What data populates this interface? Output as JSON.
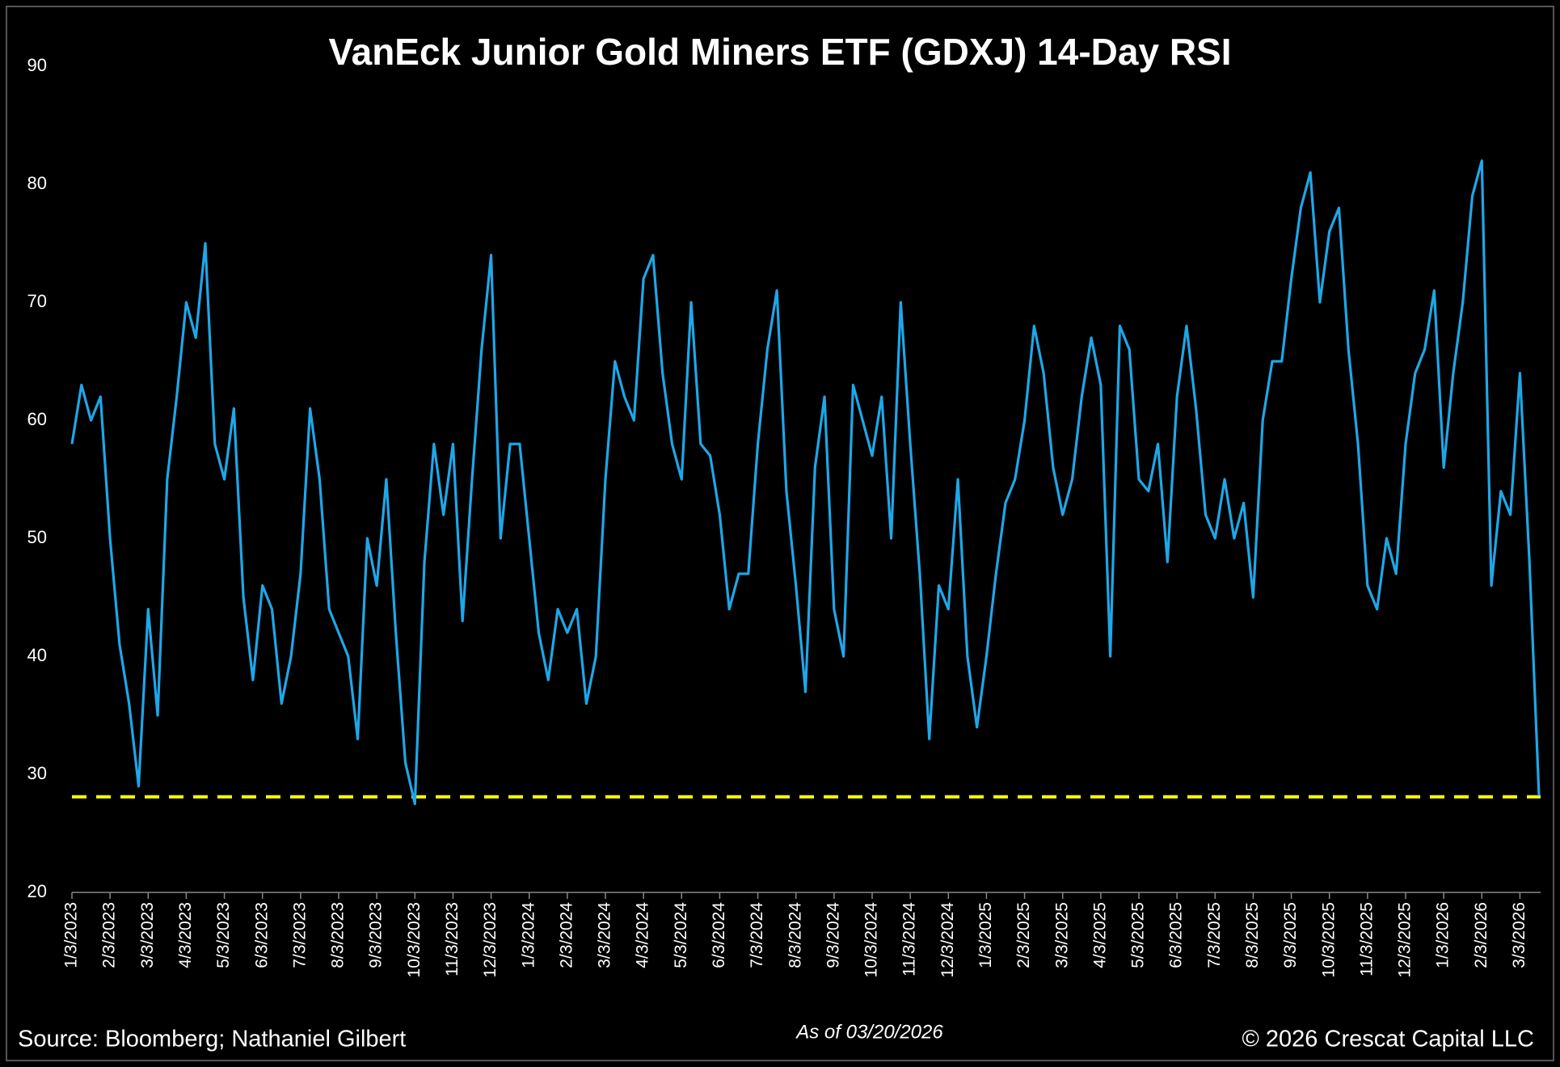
{
  "chart_data": {
    "type": "line",
    "title": "VanEck Junior Gold Miners ETF (GDXJ) 14-Day RSI",
    "categories": [
      "1/3/2023",
      null,
      null,
      null,
      "2/3/2023",
      null,
      null,
      null,
      "3/3/2023",
      null,
      null,
      null,
      "4/3/2023",
      null,
      null,
      null,
      "5/3/2023",
      null,
      null,
      null,
      "6/3/2023",
      null,
      null,
      null,
      "7/3/2023",
      null,
      null,
      null,
      "8/3/2023",
      null,
      null,
      null,
      "9/3/2023",
      null,
      null,
      null,
      "10/3/2023",
      null,
      null,
      null,
      "11/3/2023",
      null,
      null,
      null,
      "12/3/2023",
      null,
      null,
      null,
      "1/3/2024",
      null,
      null,
      null,
      "2/3/2024",
      null,
      null,
      null,
      "3/3/2024",
      null,
      null,
      null,
      "4/3/2024",
      null,
      null,
      null,
      "5/3/2024",
      null,
      null,
      null,
      "6/3/2024",
      null,
      null,
      null,
      "7/3/2024",
      null,
      null,
      null,
      "8/3/2024",
      null,
      null,
      null,
      "9/3/2024",
      null,
      null,
      null,
      "10/3/2024",
      null,
      null,
      null,
      "11/3/2024",
      null,
      null,
      null,
      "12/3/2024",
      null,
      null,
      null,
      "1/3/2025",
      null,
      null,
      null,
      "2/3/2025",
      null,
      null,
      null,
      "3/3/2025",
      null,
      null,
      null,
      "4/3/2025",
      null,
      null,
      null,
      "5/3/2025",
      null,
      null,
      null,
      "6/3/2025",
      null,
      null,
      null,
      "7/3/2025",
      null,
      null,
      null,
      "8/3/2025",
      null,
      null,
      null,
      "9/3/2025",
      null,
      null,
      null,
      "10/3/2025",
      null,
      null,
      null,
      "11/3/2025",
      null,
      null,
      null,
      "12/3/2025",
      null,
      null,
      null,
      "1/3/2026",
      null,
      null,
      null,
      "2/3/2026",
      null,
      null,
      null,
      "3/3/2026",
      null,
      null
    ],
    "series": [
      {
        "name": "GDXJ 14-Day RSI",
        "color": "#1ea7e8",
        "values": [
          58,
          63,
          60,
          62,
          50,
          41,
          36,
          29,
          44,
          35,
          55,
          62,
          70,
          67,
          75,
          58,
          55,
          61,
          45,
          38,
          46,
          44,
          36,
          40,
          47,
          61,
          55,
          44,
          42,
          40,
          33,
          50,
          46,
          55,
          42,
          31,
          27.5,
          48,
          58,
          52,
          58,
          43,
          55,
          66,
          74,
          50,
          58,
          58,
          50,
          42,
          38,
          44,
          42,
          44,
          36,
          40,
          55,
          65,
          62,
          60,
          72,
          74,
          64,
          58,
          55,
          70,
          58,
          57,
          52,
          44,
          47,
          47,
          58,
          66,
          71,
          54,
          46,
          37,
          56,
          62,
          44,
          40,
          63,
          60,
          57,
          62,
          50,
          70,
          58,
          47,
          33,
          46,
          44,
          55,
          40,
          34,
          40,
          47,
          53,
          55,
          60,
          68,
          64,
          56,
          52,
          55,
          62,
          67,
          63,
          40,
          68,
          66,
          55,
          54,
          58,
          48,
          62,
          68,
          61,
          52,
          50,
          55,
          50,
          53,
          45,
          60,
          65,
          65,
          72,
          78,
          81,
          70,
          76,
          78,
          66,
          58,
          46,
          44,
          50,
          47,
          58,
          64,
          66,
          71,
          56,
          64,
          70,
          79,
          82,
          46,
          54,
          52,
          64,
          48,
          28.2
        ]
      }
    ],
    "ylim": [
      20,
      90
    ],
    "yticks": [
      20,
      30,
      40,
      50,
      60,
      70,
      80,
      90
    ],
    "reference_line": {
      "value": 28.1,
      "color": "#ffff00",
      "dashed": true
    },
    "source": "Source: Bloomberg; Nathaniel Gilbert",
    "note": "As of 03/20/2026",
    "copyright": "© 2026 Crescat Capital LLC"
  }
}
